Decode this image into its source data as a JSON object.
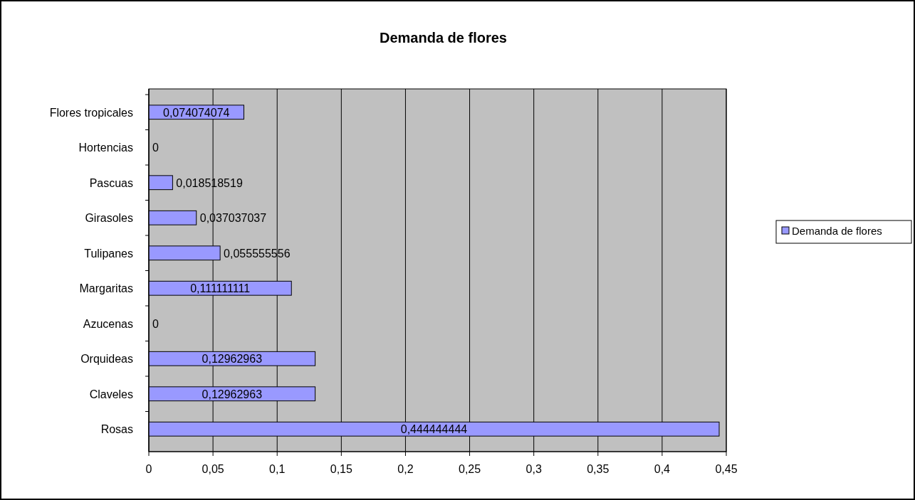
{
  "chart_data": {
    "type": "bar",
    "title": "Demanda de flores",
    "orientation": "horizontal",
    "categories": [
      "Flores tropicales",
      "Hortencias",
      "Pascuas",
      "Girasoles",
      "Tulipanes",
      "Margaritas",
      "Azucenas",
      "Orquideas",
      "Claveles",
      "Rosas"
    ],
    "series": [
      {
        "name": "Demanda de flores",
        "color": "#9999ff",
        "values": [
          0.074074074,
          0,
          0.018518519,
          0.037037037,
          0.055555556,
          0.111111111,
          0,
          0.12962963,
          0.12962963,
          0.444444444
        ],
        "value_labels": [
          "0,074074074",
          "0",
          "0,018518519",
          "0,037037037",
          "0,055555556",
          "0,111111111",
          "0",
          "0,12962963",
          "0,12962963",
          "0,444444444"
        ]
      }
    ],
    "xlim": [
      0,
      0.45
    ],
    "xticks": [
      0,
      {
        "value": 0.05,
        "label": "0,05"
      },
      {
        "value": 0.1,
        "label": "0,1"
      },
      {
        "value": 0.15,
        "label": "0,15"
      },
      {
        "value": 0.2,
        "label": "0,2"
      },
      {
        "value": 0.25,
        "label": "0,25"
      },
      {
        "value": 0.3,
        "label": "0,3"
      },
      {
        "value": 0.35,
        "label": "0,35"
      },
      {
        "value": 0.4,
        "label": "0,4"
      },
      {
        "value": 0.45,
        "label": "0,45"
      }
    ],
    "grid": "x",
    "legend": "right"
  }
}
